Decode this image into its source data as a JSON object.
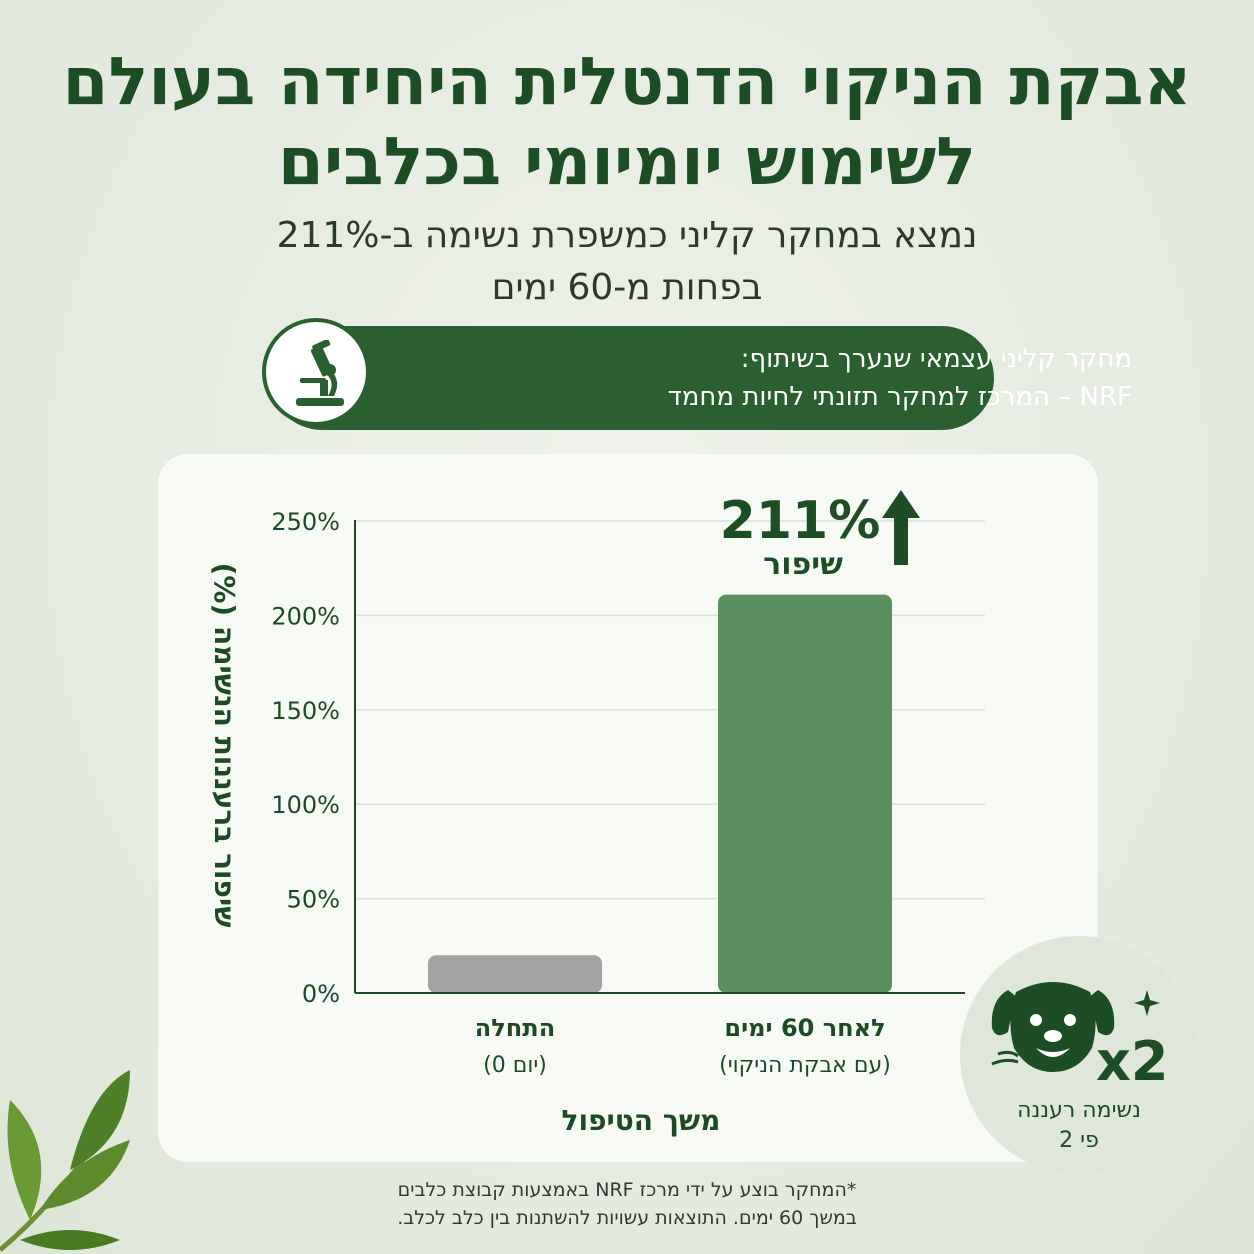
{
  "header": {
    "title_line1": "אבקת הניקוי הדנטלית היחידה בעולם",
    "title_line2": "לשימוש יומיומי בכלבים",
    "subtitle_line1": "נמצא במחקר קליני כמשפרת נשימה ב-211%",
    "subtitle_line2": "בפחות מ-60 ימים"
  },
  "study_banner": {
    "icon": "microscope-icon",
    "line1": "מחקר קליני עצמאי שנערך בשיתוף:",
    "line2": "NRF – המרכז למחקר תזונתי לחיות מחמד"
  },
  "chart_data": {
    "type": "bar",
    "categories": [
      "התחלה",
      "לאחר 60 ימים"
    ],
    "category_sublabels": [
      "(יום 0)",
      "(עם אבקת הניקוי)"
    ],
    "values": [
      20,
      211
    ],
    "bar_colors": [
      "#a3a3a3",
      "#5a8f5e"
    ],
    "ylim": [
      0,
      250
    ],
    "yticks": [
      0,
      50,
      100,
      150,
      200,
      250
    ],
    "ytick_labels": [
      "0%",
      "50%",
      "100%",
      "150%",
      "200%",
      "250%"
    ],
    "xlabel": "משך הטיפול",
    "ylabel": "שיפור ברעננות הנשימה (%)",
    "grid": true,
    "annotation": {
      "value_text": "211%",
      "text": "שיפור",
      "icon": "arrow-up-icon"
    }
  },
  "badge": {
    "icon": "dog-icon",
    "multiplier": "x2",
    "line1": "נשימה רעננה",
    "line2": "פי 2"
  },
  "footnote": {
    "line1": "*המחקר בוצע על ידי מרכז NRF באמצעות קבוצת כלבים",
    "line2": "במשך 60 ימים. התוצאות עשויות להשתנות בין כלב לכלב."
  },
  "colors": {
    "brand_green": "#1c4d24",
    "banner_green": "#2a5f2f",
    "bar_green": "#5a8f5e",
    "bar_gray": "#a3a3a3"
  }
}
